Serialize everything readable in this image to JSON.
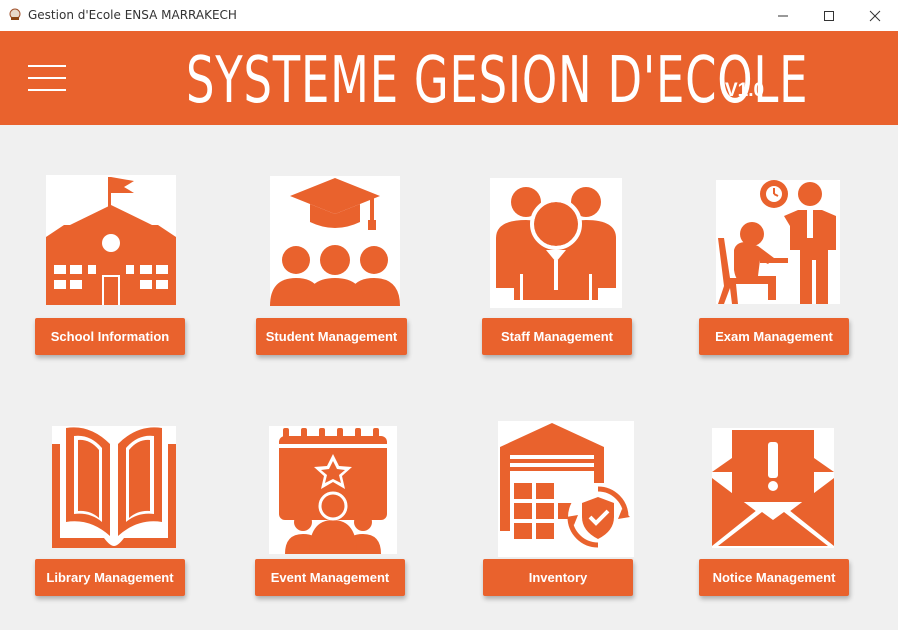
{
  "window": {
    "title": "Gestion d'Ecole ENSA MARRAKECH",
    "controls": [
      "minimize",
      "maximize",
      "close"
    ]
  },
  "header": {
    "title": "SYSTEME GESION D'ECOLE",
    "version": "V1.0",
    "menu_icon": "hamburger-menu-icon"
  },
  "colors": {
    "accent": "#e9622d",
    "background": "#f0f0f0",
    "icon_background": "#ffffff"
  },
  "tiles": [
    {
      "label": "School Information",
      "icon": "school-building-icon"
    },
    {
      "label": "Student Management",
      "icon": "graduation-students-icon"
    },
    {
      "label": "Staff Management",
      "icon": "staff-group-icon"
    },
    {
      "label": "Exam Management",
      "icon": "exam-teacher-icon"
    },
    {
      "label": "Library Management",
      "icon": "open-book-icon"
    },
    {
      "label": "Event Management",
      "icon": "event-calendar-icon"
    },
    {
      "label": "Inventory",
      "icon": "warehouse-inventory-icon"
    },
    {
      "label": "Notice Management",
      "icon": "notice-envelope-icon"
    }
  ]
}
